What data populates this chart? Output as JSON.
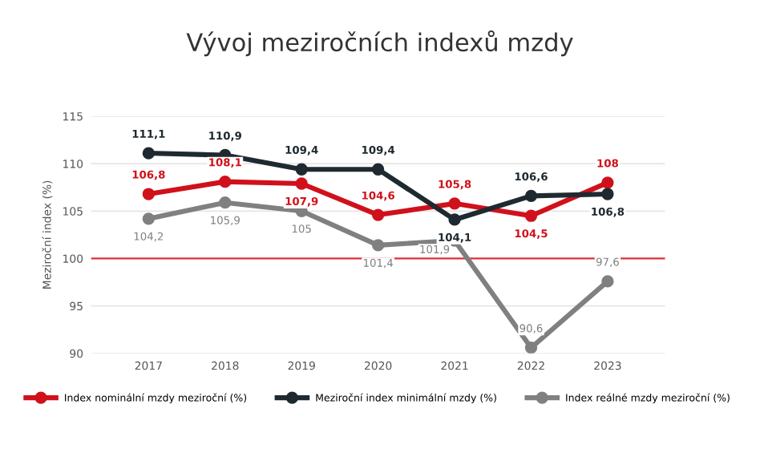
{
  "chart_data": {
    "type": "line",
    "title": "Vývoj meziročních indexů mzdy",
    "ylabel": "Meziroční index (%)",
    "categories": [
      "2017",
      "2018",
      "2019",
      "2020",
      "2021",
      "2022",
      "2023"
    ],
    "ylim": [
      90,
      115
    ],
    "yticks": [
      90,
      95,
      100,
      105,
      110,
      115
    ],
    "grid": "y",
    "legend": "bottom",
    "marker": "circle",
    "line_style": "solid",
    "ref_lines": [
      {
        "axis": "y",
        "value": 100,
        "color": "#e0303a"
      }
    ],
    "series": [
      {
        "name": "Index nominální mzdy meziroční (%)",
        "color": "#d0111b",
        "values": [
          106.8,
          108.1,
          107.9,
          104.6,
          105.8,
          104.5,
          108
        ],
        "value_labels": [
          "106,8",
          "108,1",
          "107,9",
          "104,6",
          "105,8",
          "104,5",
          "108"
        ]
      },
      {
        "name": "Meziroční index minimální mzdy (%)",
        "color": "#1f2a30",
        "values": [
          111.1,
          110.9,
          109.4,
          109.4,
          104.1,
          106.6,
          106.8
        ],
        "value_labels": [
          "111,1",
          "110,9",
          "109,4",
          "109,4",
          "104,1",
          "106,6",
          "106,8"
        ]
      },
      {
        "name": "Index reálné mzdy meziroční (%)",
        "color": "#808080",
        "values": [
          104.2,
          105.9,
          105,
          101.4,
          101.9,
          90.6,
          97.6
        ],
        "value_labels": [
          "104,2",
          "105,9",
          "105",
          "101,4",
          "101,9",
          "90,6",
          "97,6"
        ]
      }
    ]
  }
}
